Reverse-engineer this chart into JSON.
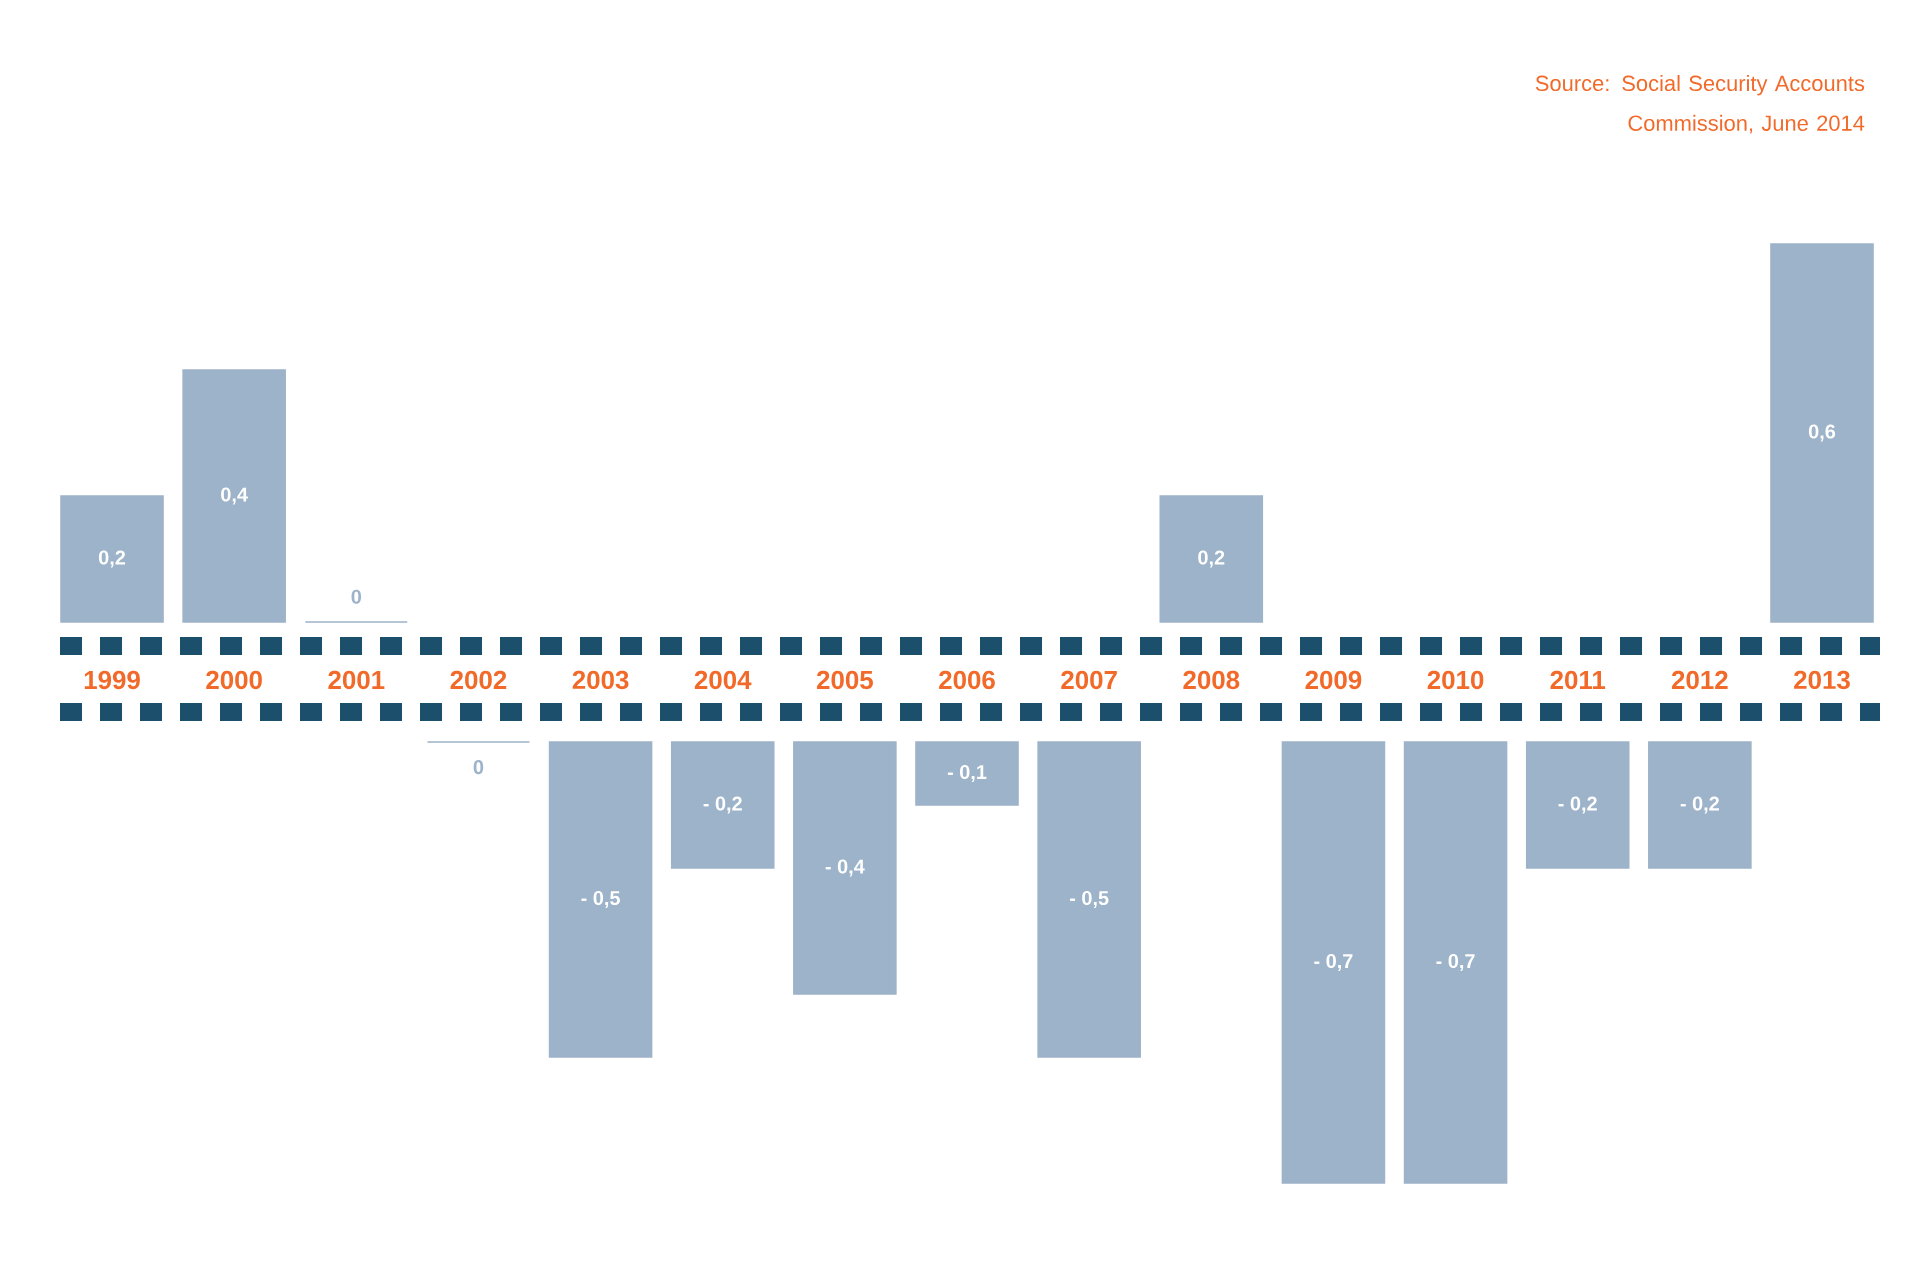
{
  "chart_data": [
    {
      "type": "bar",
      "categories": [
        "1999",
        "2000",
        "2001",
        "2002",
        "2003",
        "2004",
        "2005",
        "2006",
        "2007",
        "2008",
        "2009",
        "2010",
        "2011",
        "2012",
        "2013"
      ],
      "values": [
        0.2,
        0.4,
        0,
        null,
        null,
        null,
        null,
        null,
        null,
        0.2,
        null,
        null,
        null,
        null,
        0.6
      ],
      "value_labels": [
        "0,2",
        "0,4",
        "0",
        null,
        null,
        null,
        null,
        null,
        null,
        "0,2",
        null,
        null,
        null,
        null,
        "0,6"
      ],
      "color": "#9db3c9",
      "annotations": [
        "Source: Social Security Accounts Commission, June 2014"
      ]
    },
    {
      "type": "bar",
      "categories": [
        null,
        null,
        null,
        null,
        null,
        null,
        null,
        null,
        null,
        null,
        null,
        null,
        null,
        null,
        null
      ],
      "values": [
        null,
        null,
        null,
        0,
        -0.5,
        -0.2,
        -0.4,
        -0.1,
        -0.5,
        null,
        -0.7,
        -0.7,
        -0.2,
        -0.2,
        null
      ],
      "value_labels": [
        null,
        null,
        null,
        "0",
        "- 0,5",
        "- 0,2",
        "- 0,4",
        "- 0,1",
        "- 0,5",
        null,
        "- 0,7",
        "- 0,7",
        "- 0,2",
        "- 0,2",
        null
      ],
      "color": "#9db3c9"
    }
  ]
}
